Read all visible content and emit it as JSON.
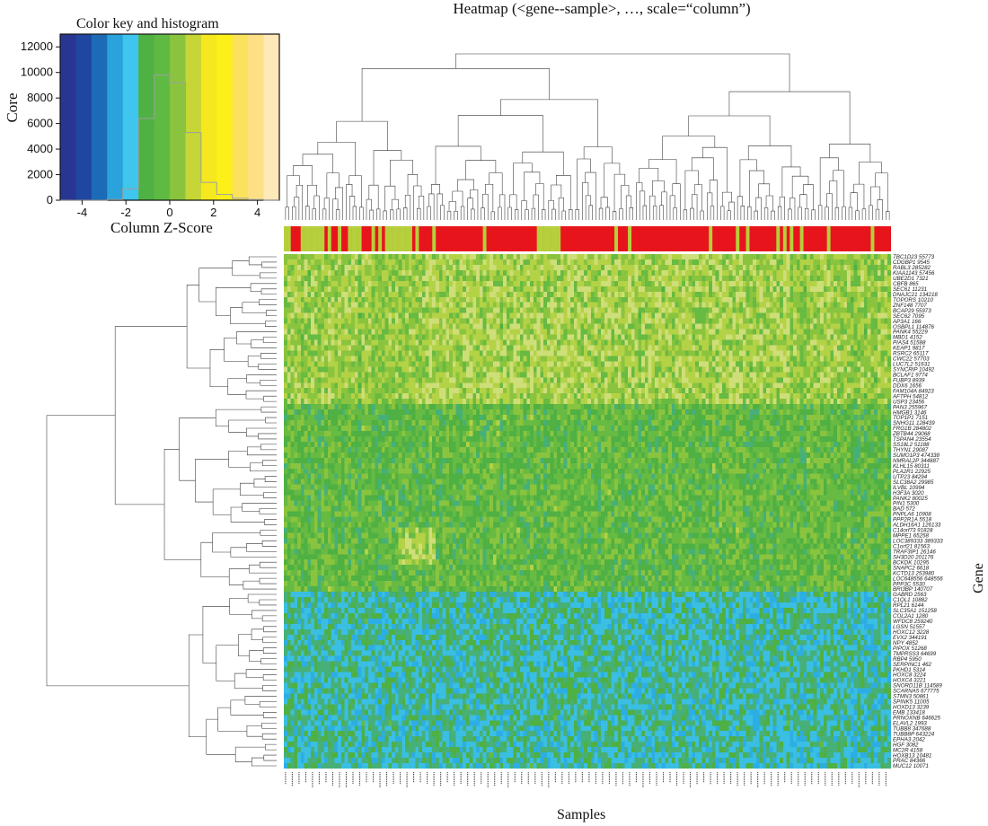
{
  "chart_data": {
    "type": "heatmap",
    "title": "Heatmap (<gene--sample>, …, scale=“column”)",
    "xlabel": "Samples",
    "ylabel": "Gene",
    "color_key": {
      "title": "Color key and histogram",
      "xlabel": "Column Z-Score",
      "ylabel": "Core",
      "x_ticks": [
        "-4",
        "-2",
        "0",
        "2",
        "4"
      ],
      "y_ticks": [
        "0",
        "2000",
        "4000",
        "6000",
        "8000",
        "10000",
        "12000"
      ],
      "x_range": [
        -5,
        5
      ],
      "y_range": [
        0,
        13000
      ],
      "histogram_counts": [
        0,
        0,
        0,
        50,
        900,
        6400,
        9800,
        9200,
        5300,
        1400,
        450,
        150,
        50,
        0
      ]
    },
    "colors": [
      "#283592",
      "#1f46a0",
      "#1d6ab6",
      "#2aa2dc",
      "#3fc5ee",
      "#4fb043",
      "#5fba43",
      "#8ac43f",
      "#c5d636",
      "#f5e81e",
      "#fcf019",
      "#fbe25c",
      "#fddf86",
      "#fee9b8"
    ],
    "sample_classes": [
      "red",
      "yellow-green"
    ],
    "genes": [
      "TBC1D23 55773",
      "CDGBP1 9545",
      "RABL3 285282",
      "KIAA1143 57456",
      "UBE2D1 7321",
      "CBFB 865",
      "SEC61 11231",
      "DNAJC21 134218",
      "TOPORS 10210",
      "ZNF148 7707",
      "BCAP29 55973",
      "SEC62 7095",
      "AP3A1 166",
      "OSBPL1 114876",
      "PANK4 55229",
      "MBD1 4152",
      "PIAS4 51588",
      "KEAP1 9817",
      "RSRC2 65117",
      "CWC22 57703",
      "LUC7L2 51631",
      "SYNCRIP 10492",
      "BCLAF1 9774",
      "FUBP3 8939",
      "DDX6 1656",
      "FAM104A 84923",
      "AFTPH 54812",
      "USP3 23456",
      "PAN3 255967",
      "HMGB1 3146",
      "TOP1P1 7151",
      "SNHG11 128439",
      "FRG1B 284802",
      "ZBTB44 29068",
      "TSPAN4 23554",
      "SS18L2 51188",
      "THYN1 29087",
      "SUMO1P3 474338",
      "NMRAL2P 344887",
      "KLHL15 80311",
      "PLA2R1 22925",
      "UTP23 84294",
      "SLC38A2 29985",
      "ILVBL 10994",
      "H3F3A 3020",
      "PANK2 80025",
      "PIN1 5300",
      "BAD 572",
      "PNPLA6 10908",
      "PPP2R1A 5518",
      "ALDH16A1 126133",
      "C14orf73 91828",
      "MPPE1 65258",
      "LOC389333 389333",
      "C1orf21 81563",
      "TRAF3IP1 26146",
      "SH3D20 201176",
      "BCKDK 10295",
      "SNAPC2 6618",
      "KCTD13 253980",
      "LOC648556 648556",
      "PPP3C 5530",
      "BRI3BP 140707",
      "GABRD 2563",
      "C1QL1 10882",
      "RPL21 6144",
      "SLC35A1 151258",
      "COL2A1 1280",
      "WFDC8 259240",
      "LGSN 51557",
      "HOXC12 3228",
      "EVX2 344191",
      "NPY 4852",
      "PIPOX 51268",
      "TMPRSS3 64699",
      "RBP4 5950",
      "SERPINC1 462",
      "PKHD1 5314",
      "HOXC8 3224",
      "HOXC4 3221",
      "SNORD11B 114589",
      "SCARNA5 677775",
      "STMN3 50861",
      "SPINK5 11005",
      "HOXD13 3239",
      "EMB 133418",
      "PRNOXNB 646625",
      "ELAVL2 1993",
      "TUBB8 347688",
      "TUBB8P 643224",
      "EPHA3 2042",
      "HGF 3082",
      "MC2R 4158",
      "HOXB13 10481",
      "PRAC 84366",
      "MUC12 10071"
    ]
  }
}
